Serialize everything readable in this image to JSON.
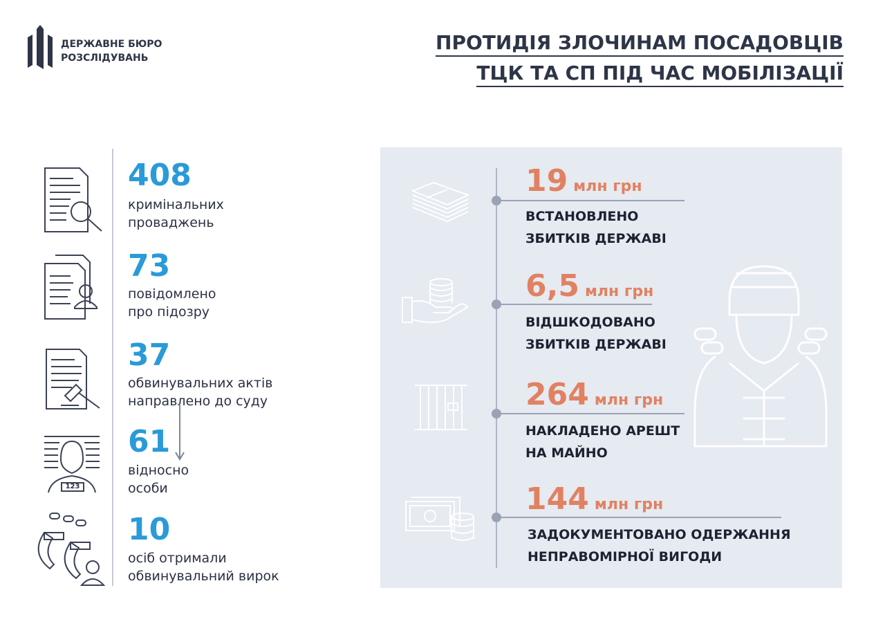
{
  "logo": {
    "line1": "ДЕРЖАВНЕ БЮРО",
    "line2": "РОЗСЛІДУВАНЬ"
  },
  "title": {
    "line1": "ПРОТИДІЯ ЗЛОЧИНАМ ПОСАДОВЦІВ",
    "line2": "ТЦК ТА СП ПІД ЧАС МОБІЛІЗАЦІЇ"
  },
  "left_stats": [
    {
      "value": "408",
      "line1": "кримінальних",
      "line2": "проваджень",
      "icon": "document-search-icon"
    },
    {
      "value": "73",
      "line1": "повідомлено",
      "line2": "про підозру",
      "icon": "documents-person-icon"
    },
    {
      "value": "37",
      "line1": "обвинувальних актів",
      "line2": "направлено до суду",
      "icon": "document-gavel-icon"
    },
    {
      "value": "61",
      "line1": "відносно",
      "line2": "особи",
      "icon": "mugshot-icon",
      "badge": "123"
    },
    {
      "value": "10",
      "line1": "осіб отримали",
      "line2": "обвинувальний вирок",
      "icon": "handcuffs-person-icon"
    }
  ],
  "right_stats": [
    {
      "value": "19",
      "unit": "млн грн",
      "line1": "ВСТАНОВЛЕНО",
      "line2": "ЗБИТКІВ ДЕРЖАВІ",
      "icon": "money-stack-icon"
    },
    {
      "value": "6,5",
      "unit": "млн грн",
      "line1": "ВІДШКОДОВАНО",
      "line2": "ЗБИТКІВ ДЕРЖАВІ",
      "icon": "hand-coins-icon"
    },
    {
      "value": "264",
      "unit": "млн грн",
      "line1": "НАКЛАДЕНО АРЕШТ",
      "line2": "НА МАЙНО",
      "icon": "prison-bars-icon"
    },
    {
      "value": "144",
      "unit": "млн грн",
      "line1": "ЗАДОКУМЕНТОВАНО ОДЕРЖАННЯ",
      "line2": "НЕПРАВОМІРНОЇ ВИГОДИ",
      "icon": "cash-coins-icon"
    }
  ],
  "colors": {
    "blue": "#2a9ad8",
    "orange": "#e08262",
    "panel": "#e6eaf1",
    "dark": "#2e3548"
  }
}
